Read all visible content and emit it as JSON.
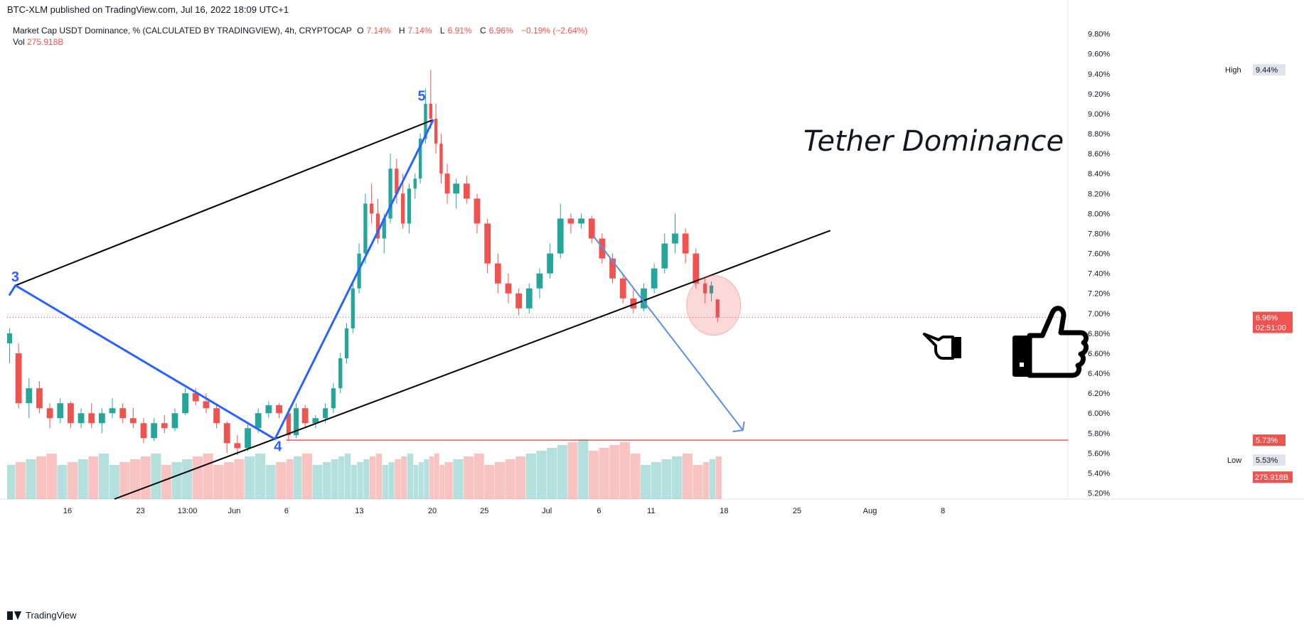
{
  "header": {
    "published": "BTC-XLM published on TradingView.com, Jul 16, 2022 18:09 UTC+1",
    "symbol_title": "Market Cap USDT Dominance, % (CALCULATED BY TRADINGVIEW), 4h, CRYPTOCAP",
    "open_label": "O",
    "open_value": "7.14%",
    "high_label": "H",
    "high_value": "7.14%",
    "low_label": "L",
    "low_value": "6.91%",
    "close_label": "C",
    "close_value": "6.96%",
    "change": "−0.19% (−2.64%)",
    "vol_label": "Vol",
    "vol_value": "275.918B"
  },
  "footer": {
    "brand": "TradingView"
  },
  "colors": {
    "up": "#26a69a",
    "down": "#ef5350",
    "blue": "#2962ff",
    "black": "#000000"
  },
  "chart_data": {
    "type": "candlestick",
    "title": "Tether Dominance",
    "y_axis": {
      "ticks": [
        "9.80%",
        "9.60%",
        "9.40%",
        "9.20%",
        "9.00%",
        "8.80%",
        "8.60%",
        "8.40%",
        "8.20%",
        "8.00%",
        "7.80%",
        "7.60%",
        "7.40%",
        "7.20%",
        "7.00%",
        "6.80%",
        "6.60%",
        "6.40%",
        "6.20%",
        "6.00%",
        "5.80%",
        "5.60%",
        "5.40%",
        "5.20%"
      ],
      "tick_values": [
        9.8,
        9.6,
        9.4,
        9.2,
        9.0,
        8.8,
        8.6,
        8.4,
        8.2,
        8.0,
        7.8,
        7.6,
        7.4,
        7.2,
        7.0,
        6.8,
        6.6,
        6.4,
        6.2,
        6.0,
        5.8,
        5.6,
        5.4,
        5.2
      ],
      "ylim": [
        5.14,
        9.94
      ]
    },
    "x_axis": {
      "ticks": [
        "16",
        "23",
        "13:00",
        "Jun",
        "6",
        "13",
        "20",
        "25",
        "Jul",
        "6",
        "11",
        "18",
        "25",
        "Aug",
        "8"
      ],
      "tick_days": [
        16,
        23,
        27.5,
        32,
        37,
        44,
        51,
        56,
        62,
        67,
        72,
        79,
        86,
        93,
        100
      ]
    },
    "x_range_days": [
      10.2,
      112
    ],
    "price_labels": {
      "high": {
        "label": "High",
        "value": "9.44%",
        "price": 9.44
      },
      "low": {
        "label": "Low",
        "value": "5.53%",
        "price": 5.53
      },
      "current": {
        "value": "6.96%",
        "countdown": "02:51:00",
        "price": 6.96
      },
      "support": {
        "value": "5.73%",
        "price": 5.73
      },
      "volume": {
        "value": "275.918B"
      }
    },
    "wave_labels": [
      {
        "text": "3",
        "day": 10.6,
        "price": 7.32
      },
      {
        "text": "4",
        "day": 35.8,
        "price": 5.62
      },
      {
        "text": "5",
        "day": 49.6,
        "price": 9.13
      }
    ],
    "wave_path": [
      {
        "day": 10.4,
        "price": 7.18
      },
      {
        "day": 11.0,
        "price": 7.28
      },
      {
        "day": 35.9,
        "price": 5.74
      },
      {
        "day": 51.1,
        "price": 8.94
      }
    ],
    "channel_upper": [
      {
        "day": 11.0,
        "price": 7.28
      },
      {
        "day": 51.1,
        "price": 8.94
      }
    ],
    "channel_lower": [
      {
        "day": 20.5,
        "price": 5.14
      },
      {
        "day": 89.2,
        "price": 7.83
      }
    ],
    "forecast_arrow": [
      {
        "day": 66.5,
        "price": 7.77
      },
      {
        "day": 80.8,
        "price": 5.83
      }
    ],
    "support_line": {
      "from_day": 37.0,
      "price": 5.73
    },
    "highlight": {
      "day": 78.0,
      "price": 7.08
    },
    "series": [
      {
        "d": 10.2,
        "o": 6.7,
        "h": 6.85,
        "l": 6.5,
        "c": 6.8
      },
      {
        "d": 11.0,
        "o": 6.6,
        "h": 6.7,
        "l": 6.05,
        "c": 6.1
      },
      {
        "d": 12.0,
        "o": 6.1,
        "h": 6.35,
        "l": 5.95,
        "c": 6.25
      },
      {
        "d": 13.0,
        "o": 6.25,
        "h": 6.32,
        "l": 6.0,
        "c": 6.05
      },
      {
        "d": 14.0,
        "o": 6.05,
        "h": 6.1,
        "l": 5.85,
        "c": 5.95
      },
      {
        "d": 15.0,
        "o": 5.95,
        "h": 6.15,
        "l": 5.9,
        "c": 6.1
      },
      {
        "d": 16.0,
        "o": 6.1,
        "h": 6.12,
        "l": 5.85,
        "c": 5.9
      },
      {
        "d": 17.0,
        "o": 5.9,
        "h": 6.05,
        "l": 5.85,
        "c": 6.0
      },
      {
        "d": 18.0,
        "o": 6.0,
        "h": 6.1,
        "l": 5.85,
        "c": 5.9
      },
      {
        "d": 19.0,
        "o": 5.9,
        "h": 6.05,
        "l": 5.8,
        "c": 6.0
      },
      {
        "d": 20.0,
        "o": 6.0,
        "h": 6.15,
        "l": 5.95,
        "c": 6.05
      },
      {
        "d": 21.0,
        "o": 6.05,
        "h": 6.1,
        "l": 5.9,
        "c": 5.95
      },
      {
        "d": 22.0,
        "o": 5.95,
        "h": 6.05,
        "l": 5.85,
        "c": 5.9
      },
      {
        "d": 23.0,
        "o": 5.9,
        "h": 5.95,
        "l": 5.7,
        "c": 5.75
      },
      {
        "d": 24.0,
        "o": 5.75,
        "h": 5.95,
        "l": 5.72,
        "c": 5.9
      },
      {
        "d": 25.0,
        "o": 5.9,
        "h": 5.98,
        "l": 5.8,
        "c": 5.85
      },
      {
        "d": 26.0,
        "o": 5.85,
        "h": 6.05,
        "l": 5.82,
        "c": 6.0
      },
      {
        "d": 27.0,
        "o": 6.0,
        "h": 6.25,
        "l": 5.98,
        "c": 6.2
      },
      {
        "d": 28.0,
        "o": 6.2,
        "h": 6.25,
        "l": 6.08,
        "c": 6.12
      },
      {
        "d": 29.0,
        "o": 6.12,
        "h": 6.2,
        "l": 6.0,
        "c": 6.05
      },
      {
        "d": 30.0,
        "o": 6.05,
        "h": 6.1,
        "l": 5.85,
        "c": 5.9
      },
      {
        "d": 31.0,
        "o": 5.9,
        "h": 5.92,
        "l": 5.6,
        "c": 5.7
      },
      {
        "d": 32.0,
        "o": 5.7,
        "h": 5.78,
        "l": 5.58,
        "c": 5.65
      },
      {
        "d": 33.0,
        "o": 5.65,
        "h": 5.9,
        "l": 5.62,
        "c": 5.85
      },
      {
        "d": 34.0,
        "o": 5.85,
        "h": 6.05,
        "l": 5.8,
        "c": 6.0
      },
      {
        "d": 35.0,
        "o": 6.0,
        "h": 6.12,
        "l": 5.95,
        "c": 6.08
      },
      {
        "d": 36.0,
        "o": 6.08,
        "h": 6.1,
        "l": 5.95,
        "c": 6.0
      },
      {
        "d": 37.0,
        "o": 6.0,
        "h": 6.05,
        "l": 5.72,
        "c": 5.78
      },
      {
        "d": 37.7,
        "o": 5.78,
        "h": 6.1,
        "l": 5.75,
        "c": 6.05
      },
      {
        "d": 38.5,
        "o": 6.05,
        "h": 6.08,
        "l": 5.85,
        "c": 5.9
      },
      {
        "d": 39.5,
        "o": 5.9,
        "h": 5.98,
        "l": 5.85,
        "c": 5.95
      },
      {
        "d": 40.5,
        "o": 5.95,
        "h": 6.1,
        "l": 5.9,
        "c": 6.05
      },
      {
        "d": 41.3,
        "o": 6.05,
        "h": 6.3,
        "l": 6.0,
        "c": 6.25
      },
      {
        "d": 42.0,
        "o": 6.25,
        "h": 6.6,
        "l": 6.2,
        "c": 6.55
      },
      {
        "d": 42.6,
        "o": 6.55,
        "h": 6.9,
        "l": 6.5,
        "c": 6.85
      },
      {
        "d": 43.2,
        "o": 6.85,
        "h": 7.3,
        "l": 6.8,
        "c": 7.25
      },
      {
        "d": 43.8,
        "o": 7.25,
        "h": 7.7,
        "l": 7.2,
        "c": 7.6
      },
      {
        "d": 44.4,
        "o": 7.6,
        "h": 8.2,
        "l": 7.5,
        "c": 8.1
      },
      {
        "d": 45.0,
        "o": 8.1,
        "h": 8.3,
        "l": 7.9,
        "c": 8.0
      },
      {
        "d": 45.6,
        "o": 8.0,
        "h": 8.15,
        "l": 7.7,
        "c": 7.75
      },
      {
        "d": 46.2,
        "o": 7.75,
        "h": 8.0,
        "l": 7.6,
        "c": 7.95
      },
      {
        "d": 46.8,
        "o": 7.95,
        "h": 8.6,
        "l": 7.9,
        "c": 8.45
      },
      {
        "d": 47.4,
        "o": 8.45,
        "h": 8.55,
        "l": 8.1,
        "c": 8.2
      },
      {
        "d": 48.0,
        "o": 8.2,
        "h": 8.4,
        "l": 7.85,
        "c": 7.9
      },
      {
        "d": 48.6,
        "o": 7.9,
        "h": 8.3,
        "l": 7.8,
        "c": 8.25
      },
      {
        "d": 49.2,
        "o": 8.25,
        "h": 8.4,
        "l": 8.15,
        "c": 8.35
      },
      {
        "d": 49.7,
        "o": 8.35,
        "h": 8.8,
        "l": 8.3,
        "c": 8.75
      },
      {
        "d": 50.2,
        "o": 8.75,
        "h": 9.25,
        "l": 8.7,
        "c": 9.1
      },
      {
        "d": 50.7,
        "o": 9.1,
        "h": 9.44,
        "l": 8.85,
        "c": 8.95
      },
      {
        "d": 51.2,
        "o": 8.95,
        "h": 9.1,
        "l": 8.6,
        "c": 8.7
      },
      {
        "d": 51.7,
        "o": 8.7,
        "h": 8.8,
        "l": 8.3,
        "c": 8.4
      },
      {
        "d": 52.2,
        "o": 8.4,
        "h": 8.5,
        "l": 8.1,
        "c": 8.2
      },
      {
        "d": 53.0,
        "o": 8.2,
        "h": 8.35,
        "l": 8.05,
        "c": 8.3
      },
      {
        "d": 54.0,
        "o": 8.3,
        "h": 8.38,
        "l": 8.1,
        "c": 8.15
      },
      {
        "d": 55.0,
        "o": 8.15,
        "h": 8.2,
        "l": 7.8,
        "c": 7.9
      },
      {
        "d": 56.0,
        "o": 7.9,
        "h": 7.95,
        "l": 7.4,
        "c": 7.5
      },
      {
        "d": 57.0,
        "o": 7.5,
        "h": 7.6,
        "l": 7.2,
        "c": 7.3
      },
      {
        "d": 58.0,
        "o": 7.3,
        "h": 7.4,
        "l": 7.1,
        "c": 7.2
      },
      {
        "d": 59.0,
        "o": 7.2,
        "h": 7.25,
        "l": 6.98,
        "c": 7.05
      },
      {
        "d": 60.0,
        "o": 7.05,
        "h": 7.3,
        "l": 7.0,
        "c": 7.25
      },
      {
        "d": 61.0,
        "o": 7.25,
        "h": 7.45,
        "l": 7.15,
        "c": 7.4
      },
      {
        "d": 62.0,
        "o": 7.4,
        "h": 7.7,
        "l": 7.35,
        "c": 7.6
      },
      {
        "d": 63.0,
        "o": 7.6,
        "h": 8.1,
        "l": 7.55,
        "c": 7.95
      },
      {
        "d": 64.0,
        "o": 7.95,
        "h": 8.0,
        "l": 7.8,
        "c": 7.9
      },
      {
        "d": 65.0,
        "o": 7.9,
        "h": 8.0,
        "l": 7.85,
        "c": 7.95
      },
      {
        "d": 66.0,
        "o": 7.95,
        "h": 7.98,
        "l": 7.7,
        "c": 7.75
      },
      {
        "d": 67.0,
        "o": 7.75,
        "h": 7.8,
        "l": 7.5,
        "c": 7.55
      },
      {
        "d": 68.0,
        "o": 7.55,
        "h": 7.6,
        "l": 7.3,
        "c": 7.35
      },
      {
        "d": 69.0,
        "o": 7.35,
        "h": 7.4,
        "l": 7.1,
        "c": 7.15
      },
      {
        "d": 70.0,
        "o": 7.15,
        "h": 7.25,
        "l": 7.0,
        "c": 7.05
      },
      {
        "d": 71.0,
        "o": 7.05,
        "h": 7.3,
        "l": 7.02,
        "c": 7.25
      },
      {
        "d": 72.0,
        "o": 7.25,
        "h": 7.5,
        "l": 7.2,
        "c": 7.45
      },
      {
        "d": 73.0,
        "o": 7.45,
        "h": 7.8,
        "l": 7.4,
        "c": 7.7
      },
      {
        "d": 74.0,
        "o": 7.7,
        "h": 8.0,
        "l": 7.6,
        "c": 7.8
      },
      {
        "d": 75.0,
        "o": 7.8,
        "h": 7.85,
        "l": 7.5,
        "c": 7.6
      },
      {
        "d": 76.0,
        "o": 7.6,
        "h": 7.65,
        "l": 7.25,
        "c": 7.3
      },
      {
        "d": 77.0,
        "o": 7.3,
        "h": 7.35,
        "l": 7.1,
        "c": 7.2
      },
      {
        "d": 77.6,
        "o": 7.2,
        "h": 7.32,
        "l": 7.12,
        "c": 7.28
      },
      {
        "d": 78.2,
        "o": 7.14,
        "h": 7.14,
        "l": 6.91,
        "c": 6.96
      }
    ]
  }
}
